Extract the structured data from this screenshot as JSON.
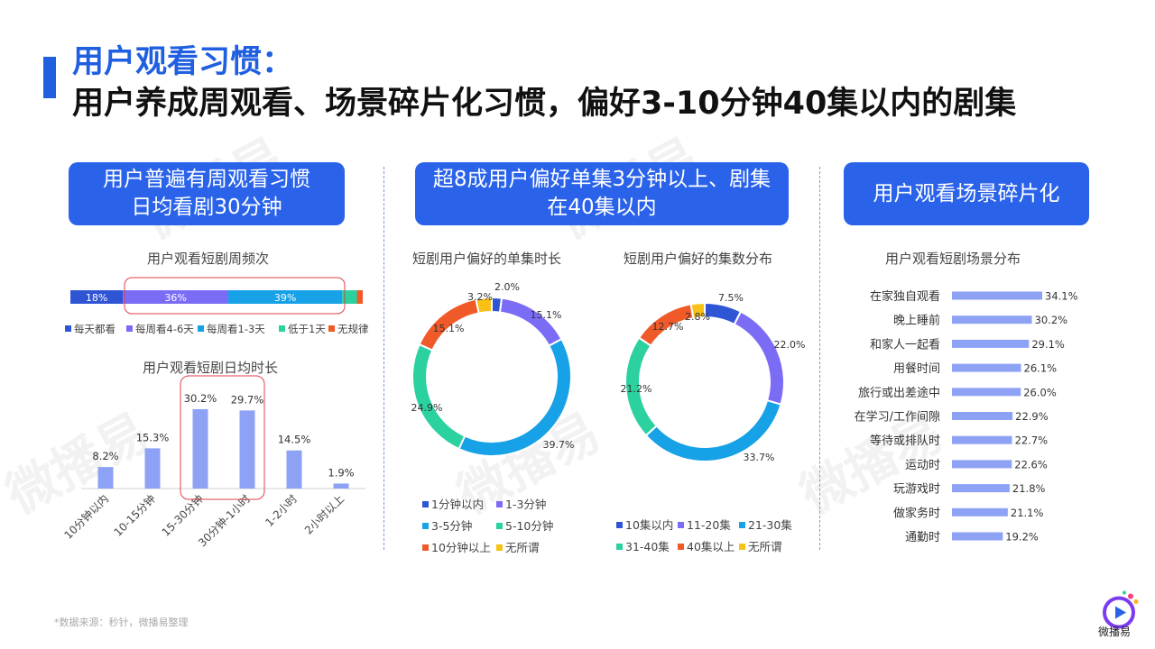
{
  "header": {
    "title_line1": "用户观看习惯：",
    "title_line2": "用户养成周观看、场景碎片化习惯，偏好3-10分钟40集以内的剧集"
  },
  "watermark": "微播易",
  "panels": {
    "left_pill": [
      "用户普遍有周观看习惯",
      "日均看剧30分钟"
    ],
    "middle_pill": [
      "超8成用户偏好单集3分钟以上、剧集",
      "在40集以内"
    ],
    "right_pill": "用户观看场景碎片化"
  },
  "colors": {
    "brand": "#2a63ea",
    "blue_dark": "#2f55d4",
    "purple": "#7b6cf6",
    "sky": "#17a1e6",
    "teal": "#2bd19f",
    "orange": "#ef5a28",
    "yellow": "#f7c116",
    "bar": "#8ea2f5",
    "highlight": "#e0404a"
  },
  "chart_data": [
    {
      "type": "bar",
      "stacked": true,
      "orientation": "horizontal",
      "title": "用户观看短剧周频次",
      "series": [
        {
          "name": "每天都看",
          "value": 18,
          "label": "18%",
          "color": "#2f55d4"
        },
        {
          "name": "每周看4-6天",
          "value": 36,
          "label": "36%",
          "color": "#7b6cf6"
        },
        {
          "name": "每周看1-3天",
          "value": 39,
          "label": "39%",
          "color": "#17a1e6"
        },
        {
          "name": "低于1天",
          "value": 5,
          "label": "",
          "color": "#2bd19f"
        },
        {
          "name": "无规律",
          "value": 2,
          "label": "",
          "color": "#ef5a28"
        }
      ],
      "legend": "bottom"
    },
    {
      "type": "bar",
      "title": "用户观看短剧日均时长",
      "categories": [
        "10分钟以内",
        "10-15分钟",
        "15-30分钟",
        "30分钟-1小时",
        "1-2小时",
        "2小时以上"
      ],
      "values": [
        8.2,
        15.3,
        30.2,
        29.7,
        14.5,
        1.9
      ],
      "labels": [
        "8.2%",
        "15.3%",
        "30.2%",
        "29.7%",
        "14.5%",
        "1.9%"
      ],
      "ylim": [
        0,
        36
      ]
    },
    {
      "type": "pie",
      "donut": true,
      "title": "短剧用户偏好的单集时长",
      "series": [
        {
          "name": "1分钟以内",
          "value": 2.0,
          "label": "2.0%",
          "color": "#2f55d4"
        },
        {
          "name": "1-3分钟",
          "value": 15.1,
          "label": "15.1%",
          "color": "#7b6cf6"
        },
        {
          "name": "3-5分钟",
          "value": 39.7,
          "label": "39.7%",
          "color": "#17a1e6"
        },
        {
          "name": "5-10分钟",
          "value": 24.9,
          "label": "24.9%",
          "color": "#2bd19f"
        },
        {
          "name": "10分钟以上",
          "value": 15.1,
          "label": "15.1%",
          "color": "#ef5a28"
        },
        {
          "name": "无所谓",
          "value": 3.2,
          "label": "3.2%",
          "color": "#f7c116"
        }
      ],
      "legend": "bottom"
    },
    {
      "type": "pie",
      "donut": true,
      "title": "短剧用户偏好的集数分布",
      "series": [
        {
          "name": "10集以内",
          "value": 7.5,
          "label": "7.5%",
          "color": "#2f55d4"
        },
        {
          "name": "11-20集",
          "value": 22.0,
          "label": "22.0%",
          "color": "#7b6cf6"
        },
        {
          "name": "21-30集",
          "value": 33.7,
          "label": "33.7%",
          "color": "#17a1e6"
        },
        {
          "name": "31-40集",
          "value": 21.2,
          "label": "21.2%",
          "color": "#2bd19f"
        },
        {
          "name": "40集以上",
          "value": 12.7,
          "label": "12.7%",
          "color": "#ef5a28"
        },
        {
          "name": "无所谓",
          "value": 2.8,
          "label": "2.8%",
          "color": "#f7c116"
        }
      ],
      "legend": "bottom"
    },
    {
      "type": "bar",
      "orientation": "horizontal",
      "title": "用户观看短剧场景分布",
      "categories": [
        "在家独自观看",
        "晚上睡前",
        "和家人一起看",
        "用餐时间",
        "旅行或出差途中",
        "在学习/工作间隙",
        "等待或排队时",
        "运动时",
        "玩游戏时",
        "做家务时",
        "通勤时"
      ],
      "values": [
        34.1,
        30.2,
        29.1,
        26.1,
        26.0,
        22.9,
        22.7,
        22.6,
        21.8,
        21.1,
        19.2
      ],
      "labels": [
        "34.1%",
        "30.2%",
        "29.1%",
        "26.1%",
        "26.0%",
        "22.9%",
        "22.7%",
        "22.6%",
        "21.8%",
        "21.1%",
        "19.2%"
      ]
    }
  ],
  "footer": {
    "source": "*数据来源：秒针，微播易整理",
    "logo_text": "微播易"
  }
}
